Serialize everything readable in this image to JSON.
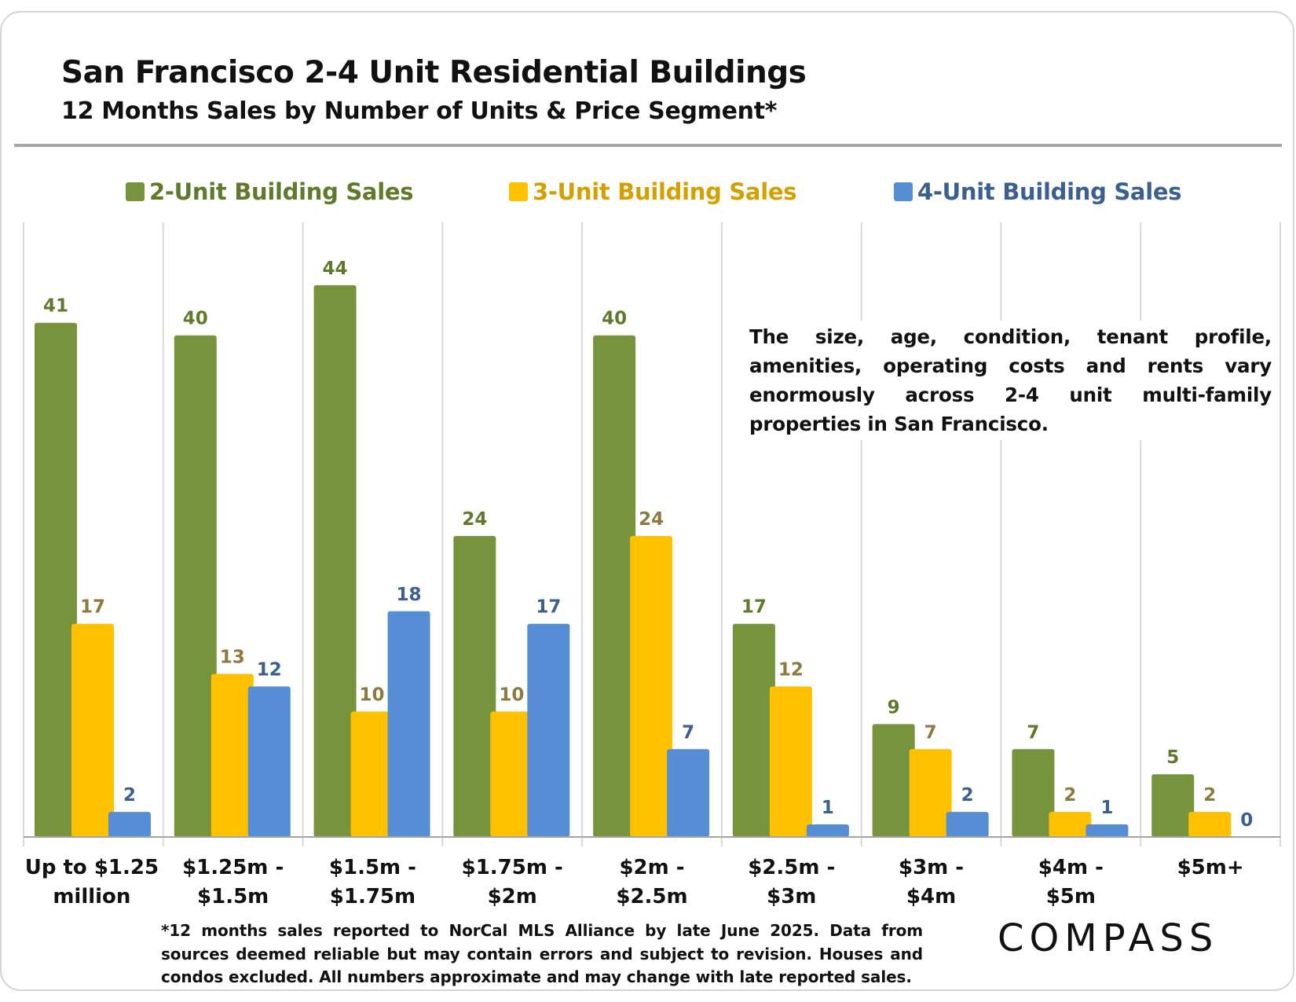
{
  "colors": {
    "two_unit": "#77933c",
    "three_unit": "#ffc000",
    "four_unit": "#558ed5",
    "two_unit_label": "#5f7a2a",
    "three_unit_label": "#8c7a40",
    "four_unit_label": "#3b5f8f",
    "grid": "#d9d9d9"
  },
  "chart_data": {
    "type": "bar",
    "title": "San Francisco 2-4 Unit Residential Buildings",
    "subtitle": "12 Months Sales by Number of Units & Price Segment*",
    "categories": [
      [
        "Up to $1.25",
        "million"
      ],
      [
        "$1.25m -",
        "$1.5m"
      ],
      [
        "$1.5m -",
        "$1.75m"
      ],
      [
        "$1.75m -",
        "$2m"
      ],
      [
        "$2m -",
        "$2.5m"
      ],
      [
        "$2.5m -",
        "$3m"
      ],
      [
        "$3m -",
        "$4m"
      ],
      [
        "$4m -",
        "$5m"
      ],
      [
        "$5m+"
      ]
    ],
    "series": [
      {
        "name": "2-Unit Building Sales",
        "values": [
          41,
          40,
          44,
          24,
          40,
          17,
          9,
          7,
          5
        ]
      },
      {
        "name": "3-Unit Building Sales",
        "values": [
          17,
          13,
          10,
          10,
          24,
          12,
          7,
          2,
          2
        ]
      },
      {
        "name": "4-Unit Building Sales",
        "values": [
          2,
          12,
          18,
          17,
          7,
          1,
          2,
          1,
          0
        ]
      }
    ],
    "ylim": [
      0,
      47
    ],
    "legend_position": "top",
    "data_labels": true,
    "y_axis_visible": false
  },
  "annotation": "The size, age, condition, tenant profile, amenities, operating costs and rents vary enormously across 2-4 unit multi-family properties in San Francisco.",
  "footnote": "*12 months sales reported to NorCal MLS Alliance by late June 2025. Data from sources deemed reliable but may contain errors and subject to revision. Houses and condos excluded. All numbers approximate and may change with late reported sales.",
  "logo_text": "COMPASS"
}
